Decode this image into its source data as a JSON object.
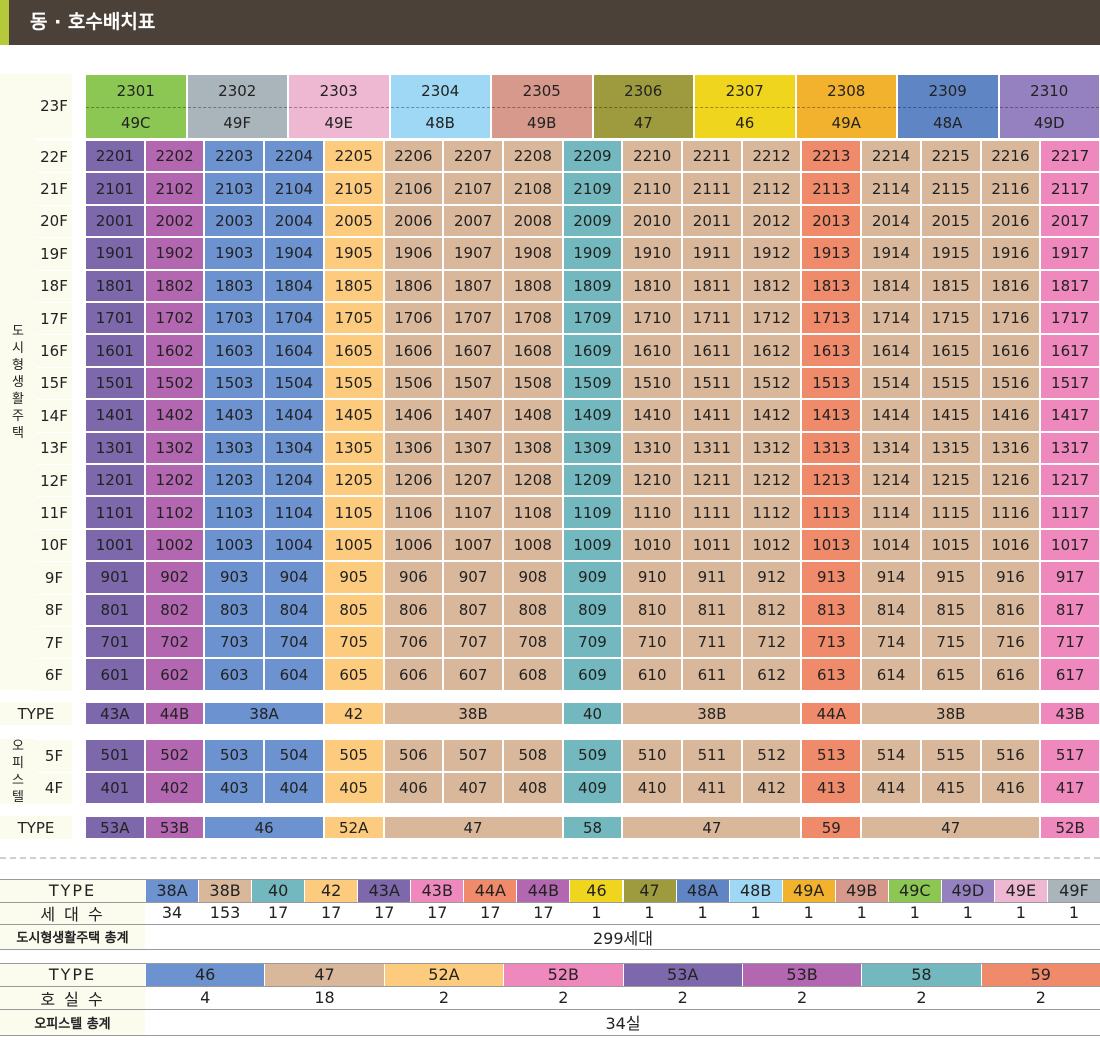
{
  "header": {
    "title": "동 · 호수배치표"
  },
  "colors": {
    "38A": "#6c93cf",
    "38B": "#d9b79b",
    "40": "#72b8be",
    "42": "#fdcb7d",
    "43A": "#7c68aa",
    "43B": "#ee88bd",
    "44A": "#ef8a6b",
    "44B": "#b267b0",
    "46": "#f0d51e",
    "47": "#9e9b3e",
    "48A": "#5f85c4",
    "48B": "#9fd8f4",
    "49A": "#f3b22e",
    "49B": "#d6998b",
    "49C": "#8cc753",
    "49D": "#9581bf",
    "49E": "#eeb8d2",
    "49F": "#aab5bb",
    "o46": "#6c93cf",
    "o47": "#d9b79b",
    "o52A": "#fdcb7d",
    "o52B": "#ee88bd",
    "o53A": "#7c68aa",
    "o53B": "#b267b0",
    "o58": "#72b8be",
    "o59": "#ef8a6b"
  },
  "section_labels": {
    "urban": "도시형생활주택",
    "office": "오피스텔"
  },
  "top_floor": {
    "label": "23F",
    "units": [
      {
        "unit": "2301",
        "type": "49C"
      },
      {
        "unit": "2302",
        "type": "49F"
      },
      {
        "unit": "2303",
        "type": "49E"
      },
      {
        "unit": "2304",
        "type": "48B"
      },
      {
        "unit": "2305",
        "type": "49B"
      },
      {
        "unit": "2306",
        "type": "47"
      },
      {
        "unit": "2307",
        "type": "46"
      },
      {
        "unit": "2308",
        "type": "49A"
      },
      {
        "unit": "2309",
        "type": "48A"
      },
      {
        "unit": "2310",
        "type": "49D"
      }
    ]
  },
  "urban_column_types": [
    "43A",
    "44B",
    "38A",
    "38A",
    "42",
    "38B",
    "38B",
    "38B",
    "40",
    "38B",
    "38B",
    "38B",
    "44A",
    "38B",
    "38B",
    "38B",
    "43B"
  ],
  "urban_floors": [
    {
      "label": "22F",
      "prefix": "22"
    },
    {
      "label": "21F",
      "prefix": "21"
    },
    {
      "label": "20F",
      "prefix": "20"
    },
    {
      "label": "19F",
      "prefix": "19"
    },
    {
      "label": "18F",
      "prefix": "18"
    },
    {
      "label": "17F",
      "prefix": "17"
    },
    {
      "label": "16F",
      "prefix": "16"
    },
    {
      "label": "15F",
      "prefix": "15"
    },
    {
      "label": "14F",
      "prefix": "14"
    },
    {
      "label": "13F",
      "prefix": "13"
    },
    {
      "label": "12F",
      "prefix": "12"
    },
    {
      "label": "11F",
      "prefix": "11"
    },
    {
      "label": "10F",
      "prefix": "10"
    },
    {
      "label": "9F",
      "prefix": "9"
    },
    {
      "label": "8F",
      "prefix": "8"
    },
    {
      "label": "7F",
      "prefix": "7"
    },
    {
      "label": "6F",
      "prefix": "6"
    }
  ],
  "urban_type_row": {
    "label": "TYPE",
    "spans": [
      {
        "type": "43A",
        "span": 1
      },
      {
        "type": "44B",
        "span": 1
      },
      {
        "type": "38A",
        "span": 2
      },
      {
        "type": "42",
        "span": 1
      },
      {
        "type": "38B",
        "span": 3
      },
      {
        "type": "40",
        "span": 1
      },
      {
        "type": "38B",
        "span": 3
      },
      {
        "type": "44A",
        "span": 1
      },
      {
        "type": "38B",
        "span": 3
      },
      {
        "type": "43B",
        "span": 1
      }
    ]
  },
  "office_column_types": [
    "o53A",
    "o53B",
    "o46",
    "o46",
    "o52A",
    "o47",
    "o47",
    "o47",
    "o58",
    "o47",
    "o47",
    "o47",
    "o59",
    "o47",
    "o47",
    "o47",
    "o52B"
  ],
  "office_floors": [
    {
      "label": "5F",
      "prefix": "5"
    },
    {
      "label": "4F",
      "prefix": "4"
    }
  ],
  "office_type_row": {
    "label": "TYPE",
    "spans": [
      {
        "type": "53A",
        "color": "o53A",
        "span": 1
      },
      {
        "type": "53B",
        "color": "o53B",
        "span": 1
      },
      {
        "type": "46",
        "color": "o46",
        "span": 2
      },
      {
        "type": "52A",
        "color": "o52A",
        "span": 1
      },
      {
        "type": "47",
        "color": "o47",
        "span": 3
      },
      {
        "type": "58",
        "color": "o58",
        "span": 1
      },
      {
        "type": "47",
        "color": "o47",
        "span": 3
      },
      {
        "type": "59",
        "color": "o59",
        "span": 1
      },
      {
        "type": "47",
        "color": "o47",
        "span": 3
      },
      {
        "type": "52B",
        "color": "o52B",
        "span": 1
      }
    ]
  },
  "urban_summary": {
    "type_label": "TYPE",
    "count_label": "세 대 수",
    "total_label": "도시형생활주택 총계",
    "total_value": "299세대",
    "items": [
      {
        "type": "38A",
        "count": "34"
      },
      {
        "type": "38B",
        "count": "153"
      },
      {
        "type": "40",
        "count": "17"
      },
      {
        "type": "42",
        "count": "17"
      },
      {
        "type": "43A",
        "count": "17"
      },
      {
        "type": "43B",
        "count": "17"
      },
      {
        "type": "44A",
        "count": "17"
      },
      {
        "type": "44B",
        "count": "17"
      },
      {
        "type": "46",
        "count": "1"
      },
      {
        "type": "47",
        "count": "1"
      },
      {
        "type": "48A",
        "count": "1"
      },
      {
        "type": "48B",
        "count": "1"
      },
      {
        "type": "49A",
        "count": "1"
      },
      {
        "type": "49B",
        "count": "1"
      },
      {
        "type": "49C",
        "count": "1"
      },
      {
        "type": "49D",
        "count": "1"
      },
      {
        "type": "49E",
        "count": "1"
      },
      {
        "type": "49F",
        "count": "1"
      }
    ]
  },
  "office_summary": {
    "type_label": "TYPE",
    "count_label": "호 실 수",
    "total_label": "오피스텔 총계",
    "total_value": "34실",
    "items": [
      {
        "type": "46",
        "color": "o46",
        "count": "4"
      },
      {
        "type": "47",
        "color": "o47",
        "count": "18"
      },
      {
        "type": "52A",
        "color": "o52A",
        "count": "2"
      },
      {
        "type": "52B",
        "color": "o52B",
        "count": "2"
      },
      {
        "type": "53A",
        "color": "o53A",
        "count": "2"
      },
      {
        "type": "53B",
        "color": "o53B",
        "count": "2"
      },
      {
        "type": "58",
        "color": "o58",
        "count": "2"
      },
      {
        "type": "59",
        "color": "o59",
        "count": "2"
      }
    ]
  }
}
